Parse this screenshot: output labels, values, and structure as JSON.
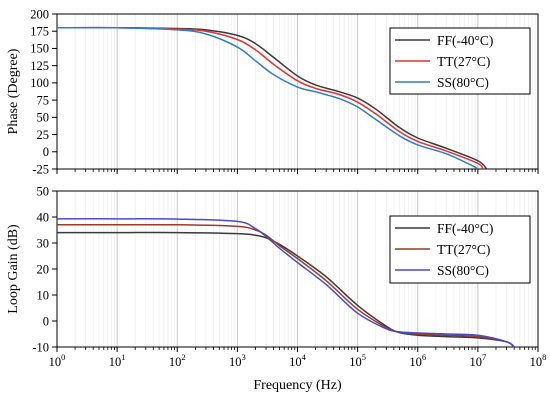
{
  "chart_data": [
    {
      "type": "line",
      "ylabel": "Phase (Degree)",
      "xlabel": "",
      "xscale": "log",
      "xlim": [
        1,
        100000000
      ],
      "ylim": [
        -25,
        200
      ],
      "yticks": [
        -25,
        0,
        25,
        50,
        75,
        100,
        125,
        150,
        175,
        200
      ],
      "grid": "vertical",
      "legend": "top-right",
      "series": [
        {
          "name": "FF(-40°C)",
          "color": "#3a3a3a",
          "x": [
            1,
            10,
            100,
            300,
            1000,
            2000,
            4000,
            10000,
            20000,
            50000,
            100000,
            200000,
            500000,
            1000000,
            3000000,
            10000000,
            14000000
          ],
          "y": [
            180,
            180,
            179,
            177,
            169,
            157,
            137,
            110,
            97,
            87,
            78,
            62,
            35,
            20,
            5,
            -13,
            -25
          ]
        },
        {
          "name": "TT(27°C)",
          "color": "#e8302c",
          "x": [
            1,
            10,
            100,
            300,
            1000,
            2000,
            4000,
            10000,
            20000,
            50000,
            100000,
            200000,
            500000,
            1000000,
            3000000,
            10000000,
            12000000
          ],
          "y": [
            180,
            180,
            178,
            175,
            163,
            148,
            127,
            103,
            92,
            83,
            72,
            55,
            29,
            15,
            1,
            -17,
            -25
          ]
        },
        {
          "name": "SS(80°C)",
          "color": "#2c7ec6",
          "x": [
            1,
            10,
            100,
            300,
            1000,
            2000,
            4000,
            10000,
            20000,
            50000,
            100000,
            200000,
            500000,
            1000000,
            3000000,
            8000000,
            10000000
          ],
          "y": [
            180,
            180,
            177,
            171,
            152,
            132,
            112,
            94,
            87,
            77,
            65,
            47,
            23,
            10,
            -3,
            -20,
            -25
          ]
        }
      ]
    },
    {
      "type": "line",
      "ylabel": "Loop Gain (dB)",
      "xlabel": "Frequency (Hz)",
      "xscale": "log",
      "xlim": [
        1,
        100000000
      ],
      "ylim": [
        -10,
        50
      ],
      "yticks": [
        -10,
        0,
        10,
        20,
        30,
        40,
        50
      ],
      "xtick_exponents": [
        0,
        1,
        2,
        3,
        4,
        5,
        6,
        7,
        8
      ],
      "xtick_base": "10",
      "grid": "vertical",
      "legend": "bottom-right",
      "series": [
        {
          "name": "FF(-40°C)",
          "color": "#3a3a3a",
          "x": [
            1,
            10,
            100,
            1000,
            2000,
            3000,
            5000,
            10000,
            30000,
            100000,
            300000,
            500000,
            1000000,
            3000000,
            10000000,
            30000000,
            40000000
          ],
          "y": [
            34,
            34,
            34,
            33.6,
            33,
            32,
            29.5,
            25,
            17,
            6,
            -2,
            -4.5,
            -5.5,
            -6,
            -6.5,
            -8,
            -10
          ]
        },
        {
          "name": "TT(27°C)",
          "color": "#9c3a2a",
          "x": [
            1,
            10,
            100,
            1000,
            2000,
            3000,
            5000,
            10000,
            30000,
            100000,
            300000,
            500000,
            1000000,
            3000000,
            10000000,
            30000000,
            40000000
          ],
          "y": [
            37,
            37,
            37,
            36.4,
            35,
            33,
            29,
            24,
            15.5,
            4.5,
            -2.5,
            -4.3,
            -5,
            -5.5,
            -6,
            -8,
            -10
          ]
        },
        {
          "name": "SS(80°C)",
          "color": "#4a4ac8",
          "x": [
            1,
            10,
            100,
            1000,
            2000,
            3000,
            5000,
            10000,
            30000,
            100000,
            300000,
            500000,
            1000000,
            3000000,
            10000000,
            30000000,
            40000000
          ],
          "y": [
            39.3,
            39.3,
            39.2,
            38.3,
            35.5,
            32.5,
            28,
            22.5,
            14,
            3,
            -3,
            -4.2,
            -4.6,
            -5,
            -5.5,
            -8,
            -10
          ]
        }
      ]
    }
  ]
}
